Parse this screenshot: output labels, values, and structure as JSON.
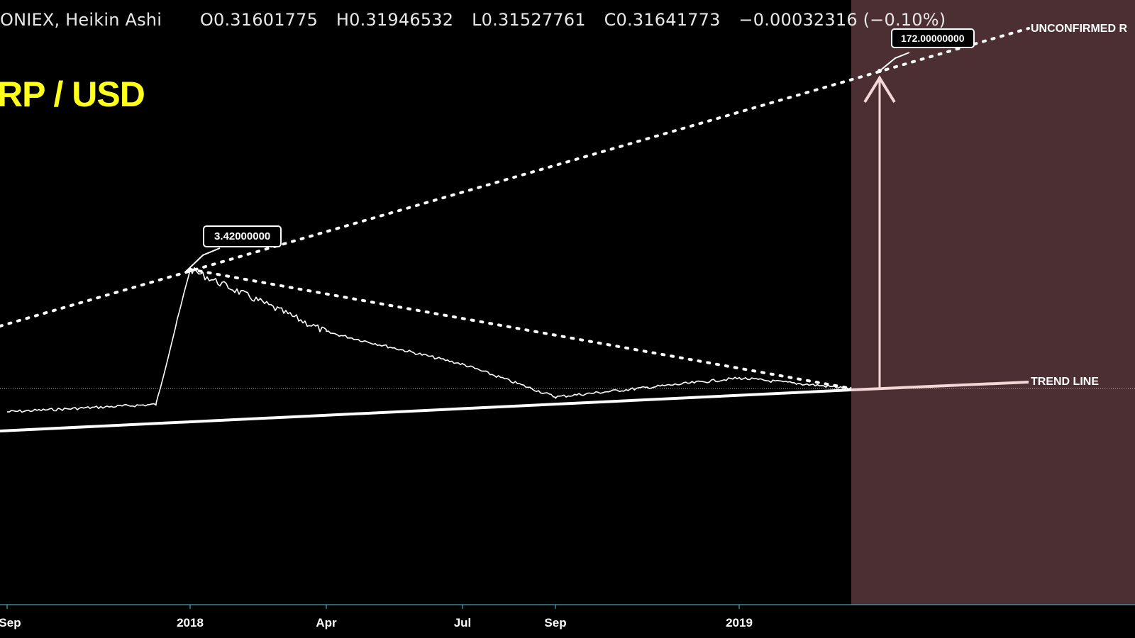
{
  "header": {
    "symbol": "ONIEX, Heikin Ashi",
    "open": "O0.31601775",
    "high": "H0.31946532",
    "low": "L0.31527761",
    "close": "C0.31641773",
    "change": "−0.00032316 (−0.10%)"
  },
  "pair_title": "RP / USD",
  "callouts": {
    "ath": "3.42000000",
    "target": "172.00000000"
  },
  "labels": {
    "unconfirmed": "UNCONFIRMED R",
    "trend": "TREND LINE"
  },
  "x_axis": {
    "labels": [
      "Sep",
      "2018",
      "Apr",
      "Jul",
      "Sep",
      "2019"
    ]
  },
  "colors": {
    "background": "#000000",
    "projection_zone": "#4b2f33",
    "title": "#ffff1a",
    "axis_line": "#4ec3c9",
    "price": "#ffffff",
    "target_arrow": "#f5d6d6"
  },
  "chart_data": {
    "type": "line",
    "title": "",
    "xlabel": "",
    "ylabel": "",
    "x": [
      "2017-09",
      "2017-12",
      "2018-01",
      "2018-04",
      "2018-07",
      "2018-09",
      "2019-01",
      "2019-03"
    ],
    "series": [
      {
        "values": [
          0.22,
          0.25,
          3.42,
          0.85,
          0.45,
          0.28,
          0.36,
          0.316
        ]
      }
    ],
    "annotations": [
      {
        "text": "3.42000000",
        "x": "2018-01",
        "y": 3.42
      },
      {
        "text": "172.00000000",
        "y": 172
      },
      {
        "text": "UNCONFIRMED R"
      },
      {
        "text": "TREND LINE"
      }
    ],
    "last_close": 0.31641773
  }
}
